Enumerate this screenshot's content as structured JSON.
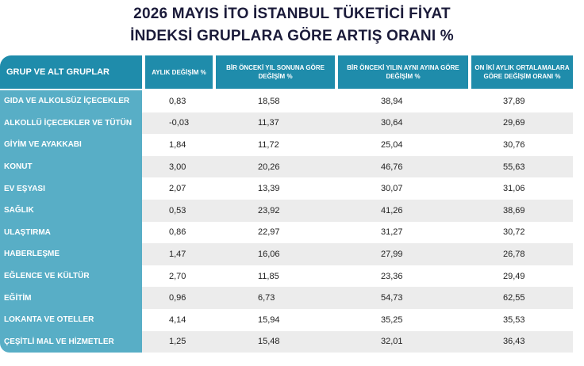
{
  "title": {
    "line1": "2026 MAYIS İTO İSTANBUL TÜKETİCİ FİYAT",
    "line2": "İNDEKSİ GRUPLARA GÖRE ARTIŞ ORANI %"
  },
  "columns": [
    "GRUP VE ALT GRUPLAR",
    "AYLIK DEĞİŞİM %",
    "BİR ÖNCEKİ YIL SONUNA GÖRE DEĞİŞİM %",
    "BİR ÖNCEKİ YILIN AYNI AYINA GÖRE DEĞİŞİM %",
    "ON İKİ AYLIK ORTALAMALARA GÖRE DEĞİŞİM ORANI %"
  ],
  "rows": [
    {
      "group": "GIDA VE ALKOLSÜZ İÇECEKLER",
      "monthly": "0,83",
      "ytd": "18,58",
      "yoy": "38,94",
      "avg12": "37,89"
    },
    {
      "group": "ALKOLLÜ İÇECEKLER VE TÜTÜN",
      "monthly": "-0,03",
      "ytd": "11,37",
      "yoy": "30,64",
      "avg12": "29,69"
    },
    {
      "group": "GİYİM VE AYAKKABI",
      "monthly": "1,84",
      "ytd": "11,72",
      "yoy": "25,04",
      "avg12": "30,76"
    },
    {
      "group": "KONUT",
      "monthly": "3,00",
      "ytd": "20,26",
      "yoy": "46,76",
      "avg12": "55,63"
    },
    {
      "group": "EV EŞYASI",
      "monthly": "2,07",
      "ytd": "13,39",
      "yoy": "30,07",
      "avg12": "31,06"
    },
    {
      "group": "SAĞLIK",
      "monthly": "0,53",
      "ytd": "23,92",
      "yoy": "41,26",
      "avg12": "38,69"
    },
    {
      "group": "ULAŞTIRMA",
      "monthly": "0,86",
      "ytd": "22,97",
      "yoy": "31,27",
      "avg12": "30,72"
    },
    {
      "group": "HABERLEŞME",
      "monthly": "1,47",
      "ytd": "16,06",
      "yoy": "27,99",
      "avg12": "26,78"
    },
    {
      "group": "EĞLENCE VE KÜLTÜR",
      "monthly": "2,70",
      "ytd": "11,85",
      "yoy": "23,36",
      "avg12": "29,49"
    },
    {
      "group": "EĞİTİM",
      "monthly": "0,96",
      "ytd": "6,73",
      "yoy": "54,73",
      "avg12": "62,55"
    },
    {
      "group": "LOKANTA VE OTELLER",
      "monthly": "4,14",
      "ytd": "15,94",
      "yoy": "35,25",
      "avg12": "35,53"
    },
    {
      "group": "ÇEŞİTLİ MAL VE HİZMETLER",
      "monthly": "1,25",
      "ytd": "15,48",
      "yoy": "32,01",
      "avg12": "36,43"
    }
  ],
  "colors": {
    "header": "#1f8cab",
    "group_column": "#58aec6",
    "stripe": "#ececec",
    "title": "#1b1b3a"
  }
}
